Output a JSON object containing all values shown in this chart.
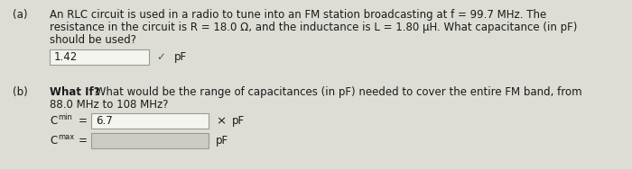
{
  "bg_color": "#ddddd5",
  "text_color": "#1a1a1a",
  "part_a_label": "(a)",
  "part_a_answer": "1.42",
  "part_a_unit": "pF",
  "part_a_check": "✓",
  "part_b_label": "(b)",
  "part_b_bold": "What If?",
  "cmin_label_big": "C",
  "cmin_sub": "min",
  "cmin_eq": "=",
  "cmin_value": "6.7",
  "cmin_unit": "pF",
  "cmin_mark": "×",
  "cmax_label_big": "C",
  "cmax_sub": "max",
  "cmax_eq": "=",
  "cmax_unit": "pF",
  "box_border": "#999999",
  "answer_box_color": "#f5f5f0",
  "empty_box_color": "#ccccc4",
  "check_color": "#555555",
  "line_a1": "An RLC circuit is used in a radio to tune into an FM station broadcasting at f = 99.7 MHz. The",
  "line_a2": "resistance in the circuit is R = 18.0 Ω, and the inductance is L = 1.80 μH. What capacitance (in pF)",
  "line_a3": "should be used?",
  "line_b1_rest": " What would be the range of capacitances (in pF) needed to cover the entire FM band, from",
  "line_b2": "88.0 MHz to 108 MHz?",
  "fs_main": 8.5,
  "fs_sub": 6.0
}
